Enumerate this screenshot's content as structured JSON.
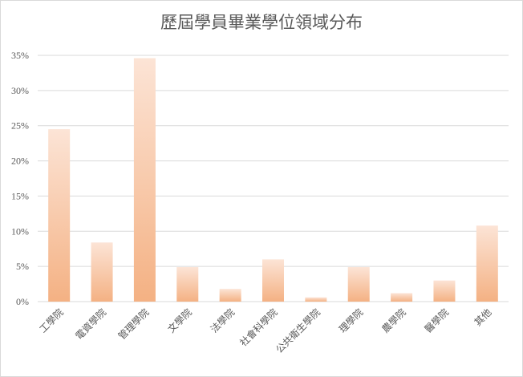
{
  "chart_data": {
    "type": "bar",
    "title": "歷屆學員畢業學位領域分布",
    "categories": [
      "工學院",
      "電資學院",
      "管理學院",
      "文學院",
      "法學院",
      "社會科學院",
      "公共衛生學院",
      "理學院",
      "農學院",
      "醫學院",
      "其他"
    ],
    "values": [
      24.5,
      8.4,
      34.6,
      4.9,
      1.8,
      6.0,
      0.6,
      4.9,
      1.2,
      3.0,
      10.8
    ],
    "ylim": [
      0,
      35
    ],
    "yticks": [
      "0%",
      "5%",
      "10%",
      "15%",
      "20%",
      "25%",
      "30%",
      "35%"
    ],
    "ytick_values": [
      0,
      5,
      10,
      15,
      20,
      25,
      30,
      35
    ],
    "grid": true,
    "legend": "none",
    "colors": {
      "bar_top": "#fce4d6",
      "bar_bottom": "#f4b183",
      "grid": "#d9d9d9",
      "text": "#595959"
    }
  }
}
